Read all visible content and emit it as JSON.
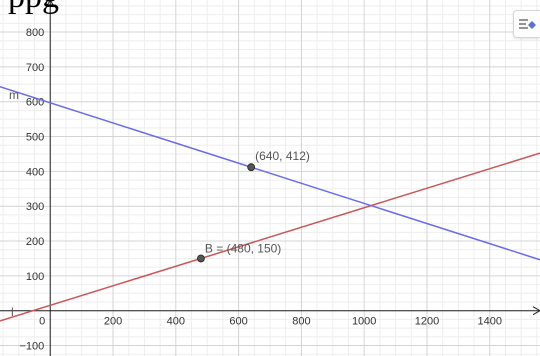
{
  "top_cut_text": "ppg",
  "toolbar": {
    "style_bar_icon": "style-bar-toggle-icon"
  },
  "axes": {
    "x_ticks": [
      0,
      200,
      400,
      600,
      800,
      1000,
      1200,
      1400
    ],
    "x_tick_labels": [
      "0",
      "200",
      "400",
      "600",
      "800",
      "1000",
      "1200",
      "1400"
    ],
    "y_ticks": [
      -100,
      100,
      200,
      300,
      400,
      500,
      600,
      700,
      800
    ],
    "y_tick_labels": [
      "−100",
      "100",
      "200",
      "300",
      "400",
      "500",
      "600",
      "700",
      "800"
    ],
    "x_range": [
      -160,
      1560
    ],
    "y_range": [
      -130,
      892
    ]
  },
  "lines": {
    "blue": {
      "label": "m",
      "color": "#6a6af0",
      "slope": -0.28875,
      "intercept": 596.8
    },
    "red": {
      "label": "l",
      "color": "#cc5555",
      "slope": 0.28,
      "intercept": 15.6
    }
  },
  "points": {
    "blue_point": {
      "label": "(640, 412)",
      "x": 640,
      "y": 412
    },
    "red_point": {
      "label": "B = (480, 150)",
      "x": 480,
      "y": 150
    }
  },
  "colors": {
    "grid_minor": "#eeeeee",
    "grid_major": "#d4d4d4",
    "axis": "#222222",
    "point_fill": "#555555"
  }
}
